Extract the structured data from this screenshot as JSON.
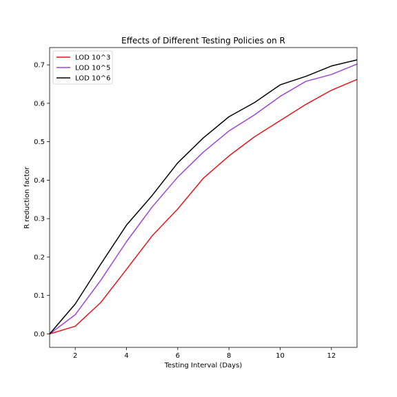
{
  "chart_data": {
    "type": "line",
    "title": "Effects of Different Testing Policies on R",
    "xlabel": "Testing Interval (Days)",
    "ylabel": "R reduction factor",
    "xlim": [
      1,
      13
    ],
    "ylim": [
      -0.035,
      0.745
    ],
    "xticks": [
      2,
      4,
      6,
      8,
      10,
      12
    ],
    "yticks": [
      0.0,
      0.1,
      0.2,
      0.3,
      0.4,
      0.5,
      0.6,
      0.7
    ],
    "ytick_labels": [
      "0.0",
      "0.1",
      "0.2",
      "0.3",
      "0.4",
      "0.5",
      "0.6",
      "0.7"
    ],
    "grid": false,
    "legend_position": "top-left",
    "x": [
      1,
      2,
      3,
      4,
      5,
      6,
      7,
      8,
      9,
      10,
      11,
      12,
      13
    ],
    "series": [
      {
        "name": "LOD 10^3",
        "color": "#e8141b",
        "values": [
          0.0,
          0.02,
          0.082,
          0.168,
          0.255,
          0.325,
          0.405,
          0.463,
          0.513,
          0.555,
          0.597,
          0.634,
          0.662
        ]
      },
      {
        "name": "LOD 10^5",
        "color": "#9b45d6",
        "values": [
          0.0,
          0.05,
          0.14,
          0.24,
          0.33,
          0.408,
          0.473,
          0.528,
          0.57,
          0.618,
          0.657,
          0.675,
          0.702
        ]
      },
      {
        "name": "LOD 10^6",
        "color": "#000000",
        "values": [
          0.0,
          0.078,
          0.182,
          0.283,
          0.36,
          0.445,
          0.51,
          0.565,
          0.602,
          0.648,
          0.67,
          0.697,
          0.713
        ]
      }
    ]
  }
}
